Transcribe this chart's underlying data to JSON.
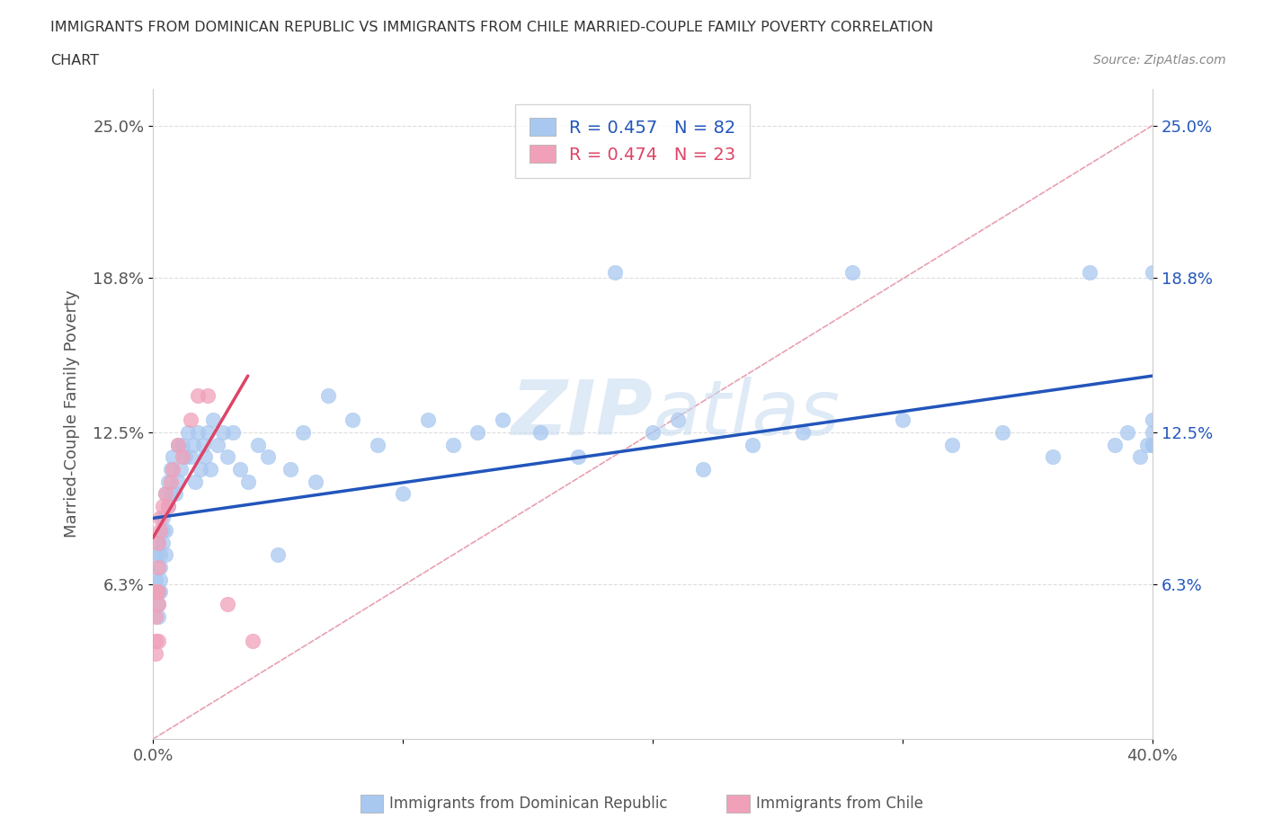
{
  "title_line1": "IMMIGRANTS FROM DOMINICAN REPUBLIC VS IMMIGRANTS FROM CHILE MARRIED-COUPLE FAMILY POVERTY CORRELATION",
  "title_line2": "CHART",
  "source_text": "Source: ZipAtlas.com",
  "ylabel": "Married-Couple Family Poverty",
  "legend_label1": "Immigrants from Dominican Republic",
  "legend_label2": "Immigrants from Chile",
  "R1": 0.457,
  "N1": 82,
  "R2": 0.474,
  "N2": 23,
  "xmin": 0.0,
  "xmax": 0.4,
  "ymin": 0.0,
  "ymax": 0.265,
  "yticks": [
    0.063,
    0.125,
    0.188,
    0.25
  ],
  "ytick_labels": [
    "6.3%",
    "12.5%",
    "18.8%",
    "25.0%"
  ],
  "xtick_labels": [
    "0.0%",
    "",
    "",
    "",
    "40.0%"
  ],
  "color_blue": "#A8C8F0",
  "color_pink": "#F0A0B8",
  "color_line_blue": "#2255BB",
  "color_line_pink": "#DD4466",
  "color_dashed": "#E8A0B0",
  "title_color": "#333333",
  "label_color": "#555555",
  "blue_line_start_y": 0.09,
  "blue_line_end_y": 0.148,
  "pink_line_start_x": 0.0,
  "pink_line_start_y": 0.082,
  "pink_line_end_x": 0.038,
  "pink_line_end_y": 0.148,
  "dr_x": [
    0.001,
    0.001,
    0.001,
    0.002,
    0.002,
    0.002,
    0.002,
    0.003,
    0.003,
    0.003,
    0.003,
    0.004,
    0.004,
    0.004,
    0.005,
    0.005,
    0.005,
    0.006,
    0.006,
    0.007,
    0.007,
    0.008,
    0.009,
    0.01,
    0.01,
    0.011,
    0.012,
    0.013,
    0.014,
    0.015,
    0.016,
    0.017,
    0.018,
    0.019,
    0.02,
    0.021,
    0.022,
    0.023,
    0.024,
    0.026,
    0.028,
    0.03,
    0.032,
    0.035,
    0.038,
    0.042,
    0.046,
    0.05,
    0.055,
    0.06,
    0.065,
    0.07,
    0.08,
    0.09,
    0.1,
    0.11,
    0.12,
    0.13,
    0.14,
    0.155,
    0.17,
    0.185,
    0.2,
    0.21,
    0.22,
    0.24,
    0.26,
    0.28,
    0.3,
    0.32,
    0.34,
    0.36,
    0.375,
    0.385,
    0.39,
    0.395,
    0.398,
    0.4,
    0.4,
    0.4,
    0.4,
    0.4
  ],
  "dr_y": [
    0.075,
    0.065,
    0.06,
    0.06,
    0.055,
    0.05,
    0.08,
    0.065,
    0.07,
    0.06,
    0.075,
    0.08,
    0.09,
    0.085,
    0.075,
    0.1,
    0.085,
    0.105,
    0.095,
    0.11,
    0.1,
    0.115,
    0.1,
    0.12,
    0.105,
    0.11,
    0.12,
    0.115,
    0.125,
    0.115,
    0.12,
    0.105,
    0.125,
    0.11,
    0.12,
    0.115,
    0.125,
    0.11,
    0.13,
    0.12,
    0.125,
    0.115,
    0.125,
    0.11,
    0.105,
    0.12,
    0.115,
    0.075,
    0.11,
    0.125,
    0.105,
    0.14,
    0.13,
    0.12,
    0.1,
    0.13,
    0.12,
    0.125,
    0.13,
    0.125,
    0.115,
    0.19,
    0.125,
    0.13,
    0.11,
    0.12,
    0.125,
    0.19,
    0.13,
    0.12,
    0.125,
    0.115,
    0.19,
    0.12,
    0.125,
    0.115,
    0.12,
    0.13,
    0.12,
    0.19,
    0.12,
    0.125
  ],
  "chile_x": [
    0.001,
    0.001,
    0.001,
    0.001,
    0.002,
    0.002,
    0.002,
    0.002,
    0.002,
    0.003,
    0.003,
    0.004,
    0.005,
    0.006,
    0.007,
    0.008,
    0.01,
    0.012,
    0.015,
    0.018,
    0.022,
    0.03,
    0.04
  ],
  "chile_y": [
    0.035,
    0.04,
    0.05,
    0.06,
    0.04,
    0.055,
    0.06,
    0.07,
    0.08,
    0.085,
    0.09,
    0.095,
    0.1,
    0.095,
    0.105,
    0.11,
    0.12,
    0.115,
    0.13,
    0.14,
    0.14,
    0.055,
    0.04
  ]
}
